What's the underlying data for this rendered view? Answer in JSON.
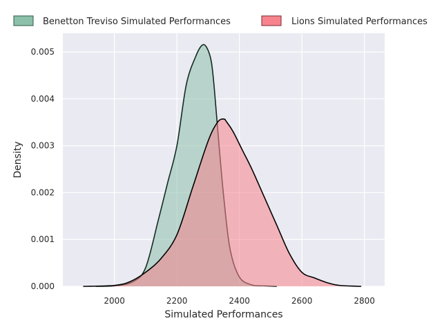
{
  "chart_data": {
    "type": "area",
    "title": "",
    "xlabel": "Simulated Performances",
    "ylabel": "Density",
    "xlim": [
      1835,
      2865
    ],
    "ylim": [
      0,
      0.0054
    ],
    "xticks": [
      2000,
      2200,
      2400,
      2600,
      2800
    ],
    "yticks": [
      0.0,
      0.001,
      0.002,
      0.003,
      0.004,
      0.005
    ],
    "ytick_labels": [
      "0.000",
      "0.001",
      "0.002",
      "0.003",
      "0.004",
      "0.005"
    ],
    "grid": true,
    "legend_position": "top",
    "series": [
      {
        "name": "Benetton Treviso Simulated Performances",
        "fill": "#8dc0ab",
        "edge": "#142a20",
        "x": [
          1940,
          2000,
          2060,
          2100,
          2140,
          2170,
          2200,
          2230,
          2260,
          2280,
          2295,
          2310,
          2320,
          2335,
          2350,
          2370,
          2400,
          2440,
          2480,
          2520
        ],
        "y": [
          0.0,
          1e-05,
          0.0001,
          0.0004,
          0.0014,
          0.0022,
          0.003,
          0.0043,
          0.0049,
          0.00514,
          0.0051,
          0.0048,
          0.0042,
          0.003,
          0.0019,
          0.0008,
          0.0002,
          3e-05,
          1e-05,
          0.0
        ]
      },
      {
        "name": "Lions Simulated Performances",
        "fill": "#f7848d",
        "edge": "#000000",
        "x": [
          1900,
          2000,
          2050,
          2100,
          2150,
          2200,
          2250,
          2300,
          2330,
          2350,
          2360,
          2380,
          2410,
          2440,
          2480,
          2520,
          2560,
          2600,
          2640,
          2680,
          2720,
          2790
        ],
        "y": [
          0.0,
          2e-05,
          0.0001,
          0.0003,
          0.0006,
          0.0011,
          0.0021,
          0.0031,
          0.0035,
          0.00357,
          0.0035,
          0.0033,
          0.0029,
          0.0025,
          0.0019,
          0.0013,
          0.0007,
          0.0003,
          0.00018,
          8e-05,
          2e-05,
          0.0
        ]
      }
    ]
  }
}
